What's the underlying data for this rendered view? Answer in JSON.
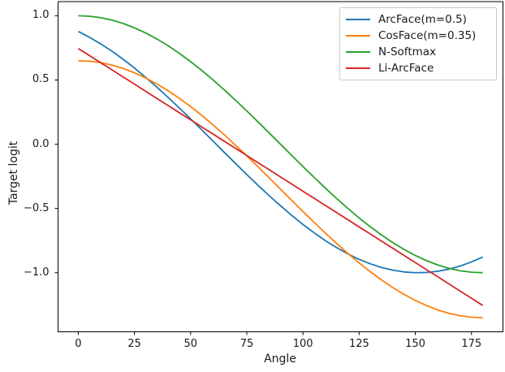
{
  "chart_data": {
    "type": "line",
    "title": "",
    "xlabel": "Angle",
    "ylabel": "Target logit",
    "xlim": [
      -9,
      189
    ],
    "ylim": [
      -1.46,
      1.11
    ],
    "xticks": [
      0,
      25,
      50,
      75,
      100,
      125,
      150,
      175
    ],
    "xtick_labels": [
      "0",
      "25",
      "50",
      "75",
      "100",
      "125",
      "150",
      "175"
    ],
    "yticks": [
      1.0,
      0.5,
      0.0,
      -0.5,
      -1.0
    ],
    "ytick_labels": [
      "1.0",
      "0.5",
      "0.0",
      "−0.5",
      "−1.0"
    ],
    "grid": false,
    "legend_position": "upper right",
    "axis_color": "#000000",
    "x": [
      0,
      5,
      10,
      15,
      20,
      25,
      30,
      35,
      40,
      45,
      50,
      55,
      60,
      65,
      70,
      75,
      80,
      85,
      90,
      95,
      100,
      105,
      110,
      115,
      120,
      125,
      130,
      135,
      140,
      145,
      150,
      155,
      160,
      165,
      170,
      175,
      180
    ],
    "series": [
      {
        "name": "ArcFace(m=0.5)",
        "color": "#1f77b4",
        "values": [
          0.878,
          0.832,
          0.781,
          0.724,
          0.661,
          0.593,
          0.52,
          0.444,
          0.364,
          0.282,
          0.197,
          0.111,
          0.024,
          -0.064,
          -0.15,
          -0.236,
          -0.32,
          -0.401,
          -0.479,
          -0.554,
          -0.625,
          -0.69,
          -0.751,
          -0.805,
          -0.854,
          -0.896,
          -0.931,
          -0.96,
          -0.98,
          -0.994,
          -1.0,
          -0.998,
          -0.989,
          -0.972,
          -0.948,
          -0.916,
          -0.878
        ]
      },
      {
        "name": "CosFace(m=0.35)",
        "color": "#ff7f0e",
        "values": [
          0.65,
          0.646,
          0.635,
          0.616,
          0.59,
          0.556,
          0.516,
          0.469,
          0.416,
          0.357,
          0.293,
          0.224,
          0.15,
          0.073,
          -0.008,
          -0.091,
          -0.176,
          -0.263,
          -0.35,
          -0.437,
          -0.524,
          -0.609,
          -0.692,
          -0.773,
          -0.85,
          -0.924,
          -0.993,
          -1.057,
          -1.116,
          -1.169,
          -1.216,
          -1.256,
          -1.29,
          -1.316,
          -1.335,
          -1.346,
          -1.35
        ]
      },
      {
        "name": "N-Softmax",
        "color": "#2ca02c",
        "values": [
          1.0,
          0.996,
          0.985,
          0.966,
          0.94,
          0.906,
          0.866,
          0.819,
          0.766,
          0.707,
          0.643,
          0.574,
          0.5,
          0.423,
          0.342,
          0.259,
          0.174,
          0.087,
          0.0,
          -0.087,
          -0.174,
          -0.259,
          -0.342,
          -0.423,
          -0.5,
          -0.574,
          -0.643,
          -0.707,
          -0.766,
          -0.819,
          -0.866,
          -0.906,
          -0.94,
          -0.966,
          -0.985,
          -0.996,
          -1.0
        ]
      },
      {
        "name": "Li-ArcFace",
        "color": "#d62728",
        "values": [
          0.745,
          0.69,
          0.634,
          0.579,
          0.523,
          0.468,
          0.412,
          0.356,
          0.301,
          0.245,
          0.19,
          0.134,
          0.079,
          0.023,
          -0.032,
          -0.088,
          -0.144,
          -0.199,
          -0.255,
          -0.31,
          -0.366,
          -0.421,
          -0.477,
          -0.532,
          -0.588,
          -0.644,
          -0.699,
          -0.755,
          -0.81,
          -0.866,
          -0.921,
          -0.977,
          -1.032,
          -1.088,
          -1.144,
          -1.199,
          -1.255
        ]
      }
    ]
  }
}
